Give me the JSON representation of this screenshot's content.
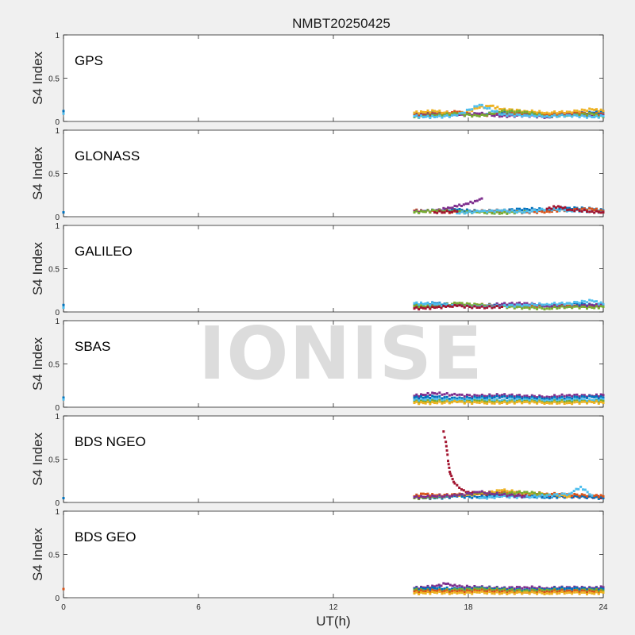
{
  "title": "NMBT20250425",
  "watermark": "IONISE",
  "xlabel": "UT(h)",
  "ylabel": "S4 Index",
  "colors": {
    "background": "#f0f0f0",
    "axes": "#262626",
    "series": [
      "#0072BD",
      "#D95319",
      "#EDB120",
      "#7E2F8E",
      "#77AC30",
      "#4DBEEE",
      "#A2142F"
    ]
  },
  "chart_data": {
    "type": "scatter",
    "xlim": [
      0,
      24
    ],
    "ylim": [
      0,
      1
    ],
    "x_ticks": [
      0,
      6,
      12,
      18,
      24
    ],
    "y_ticks": [
      0,
      0.5,
      1
    ],
    "y_tick_labels": [
      "0",
      "0.5",
      "1"
    ],
    "grid": false,
    "panels": [
      {
        "label": "GPS",
        "series": [
          {
            "color": "#0072BD",
            "x": [
              0,
              15.6,
              16.5,
              17.5,
              18.5,
              19.5,
              20.5,
              21.5,
              22.5,
              23.5,
              24
            ],
            "y": [
              0.12,
              0.08,
              0.1,
              0.09,
              0.08,
              0.1,
              0.09,
              0.08,
              0.09,
              0.1,
              0.11
            ]
          },
          {
            "color": "#D95319",
            "x": [
              15.6,
              16.5,
              17.5,
              18.5,
              19.5,
              20.5,
              21.5,
              22.5,
              23.5,
              24
            ],
            "y": [
              0.07,
              0.09,
              0.11,
              0.07,
              0.08,
              0.1,
              0.08,
              0.1,
              0.09,
              0.08
            ]
          },
          {
            "color": "#EDB120",
            "x": [
              15.6,
              16.5,
              17.5,
              18.5,
              19.0,
              19.5,
              20.5,
              21.5,
              22.5,
              23.5,
              24
            ],
            "y": [
              0.1,
              0.12,
              0.08,
              0.16,
              0.18,
              0.14,
              0.12,
              0.1,
              0.11,
              0.14,
              0.12
            ]
          },
          {
            "color": "#7E2F8E",
            "x": [
              15.6,
              16.5,
              17.5,
              18.5,
              19.5,
              20.5,
              21.5,
              22.5,
              23.5,
              24
            ],
            "y": [
              0.06,
              0.08,
              0.07,
              0.09,
              0.06,
              0.07,
              0.05,
              0.08,
              0.06,
              0.07
            ]
          },
          {
            "color": "#77AC30",
            "x": [
              15.6,
              16.5,
              17.5,
              18.5,
              19.5,
              20.5,
              21.5,
              22.5,
              23.5,
              24
            ],
            "y": [
              0.05,
              0.07,
              0.09,
              0.06,
              0.12,
              0.11,
              0.06,
              0.07,
              0.09,
              0.05
            ]
          },
          {
            "color": "#4DBEEE",
            "x": [
              0,
              15.6,
              16.5,
              17.5,
              18.5,
              19.5,
              20.5,
              21.5,
              22.5,
              23.5,
              24
            ],
            "y": [
              0.09,
              0.06,
              0.05,
              0.07,
              0.19,
              0.08,
              0.07,
              0.06,
              0.07,
              0.05,
              0.06
            ]
          }
        ]
      },
      {
        "label": "GLONASS",
        "series": [
          {
            "color": "#0072BD",
            "x": [
              0,
              15.6,
              16.5,
              17.5,
              18.5,
              19.5,
              20.5,
              21.5,
              22.5,
              23.5,
              24
            ],
            "y": [
              0.05,
              0.06,
              0.07,
              0.08,
              0.06,
              0.07,
              0.09,
              0.08,
              0.1,
              0.09,
              0.07
            ]
          },
          {
            "color": "#D95319",
            "x": [
              15.6,
              16.5,
              17.5,
              18.5,
              19.5,
              20.5,
              21.5,
              22.5,
              23.5,
              24
            ],
            "y": [
              0.07,
              0.06,
              0.05,
              0.06,
              0.07,
              0.05,
              0.06,
              0.08,
              0.09,
              0.06
            ]
          },
          {
            "color": "#7E2F8E",
            "x": [
              15.6,
              16.5,
              17.0,
              17.5,
              18.0,
              18.3,
              18.6
            ],
            "y": [
              0.06,
              0.07,
              0.09,
              0.12,
              0.15,
              0.18,
              0.21
            ]
          },
          {
            "color": "#77AC30",
            "x": [
              15.6,
              16.5,
              17.5,
              18.5,
              19.5,
              20.5
            ],
            "y": [
              0.05,
              0.07,
              0.06,
              0.05,
              0.04,
              0.06
            ]
          },
          {
            "color": "#4DBEEE",
            "x": [
              17.5,
              18.5,
              19.5,
              20.5,
              21.5,
              22.5,
              23.5,
              24
            ],
            "y": [
              0.04,
              0.06,
              0.07,
              0.05,
              0.09,
              0.07,
              0.06,
              0.05
            ]
          },
          {
            "color": "#A2142F",
            "x": [
              16.5,
              17.5,
              21.5,
              22.0,
              22.5,
              23.5,
              24
            ],
            "y": [
              0.05,
              0.06,
              0.09,
              0.12,
              0.08,
              0.06,
              0.05
            ]
          }
        ]
      },
      {
        "label": "GALILEO",
        "series": [
          {
            "color": "#0072BD",
            "x": [
              0,
              15.6,
              16.5,
              17.5,
              18.5,
              19.5,
              20.5,
              21.5,
              22.5,
              23.5,
              24
            ],
            "y": [
              0.08,
              0.09,
              0.1,
              0.08,
              0.07,
              0.09,
              0.08,
              0.07,
              0.1,
              0.08,
              0.07
            ]
          },
          {
            "color": "#D95319",
            "x": [
              15.6,
              16.5,
              17.5,
              18.5,
              19.5,
              20.5,
              21.5,
              22.5,
              23.5,
              24
            ],
            "y": [
              0.06,
              0.07,
              0.09,
              0.08,
              0.07,
              0.06,
              0.08,
              0.07,
              0.06,
              0.07
            ]
          },
          {
            "color": "#7E2F8E",
            "x": [
              15.6,
              16.5,
              17.5,
              18.5,
              19.5,
              20.5,
              21.5,
              22.5,
              23.5,
              24
            ],
            "y": [
              0.05,
              0.07,
              0.08,
              0.06,
              0.09,
              0.1,
              0.07,
              0.06,
              0.08,
              0.07
            ]
          },
          {
            "color": "#77AC30",
            "x": [
              15.6,
              16.5,
              17.5,
              18.5,
              19.5,
              20.5,
              21.5,
              22.5,
              23.5,
              24
            ],
            "y": [
              0.07,
              0.06,
              0.1,
              0.08,
              0.06,
              0.05,
              0.04,
              0.06,
              0.05,
              0.06
            ]
          },
          {
            "color": "#4DBEEE",
            "x": [
              0,
              15.6,
              16.5,
              17.5,
              18.5,
              19.5,
              20.5,
              21.5,
              22.5,
              23.5,
              24
            ],
            "y": [
              0.05,
              0.1,
              0.09,
              0.07,
              0.06,
              0.07,
              0.08,
              0.09,
              0.1,
              0.13,
              0.09
            ]
          },
          {
            "color": "#A2142F",
            "x": [
              15.6,
              16.5,
              17.0,
              17.5,
              18.5,
              19.5
            ],
            "y": [
              0.04,
              0.05,
              0.06,
              0.07,
              0.05,
              0.06
            ]
          }
        ]
      },
      {
        "label": "SBAS",
        "series": [
          {
            "color": "#7E2F8E",
            "x": [
              15.6,
              16.5,
              17.5,
              18.5,
              19.5,
              20.5,
              21.5,
              22.5,
              23.5,
              24
            ],
            "y": [
              0.13,
              0.16,
              0.14,
              0.13,
              0.14,
              0.13,
              0.12,
              0.14,
              0.13,
              0.14
            ]
          },
          {
            "color": "#0072BD",
            "x": [
              0,
              15.6,
              16.5,
              17.5,
              18.5,
              19.5,
              20.5,
              21.5,
              22.5,
              23.5,
              24
            ],
            "y": [
              0.11,
              0.11,
              0.12,
              0.1,
              0.11,
              0.12,
              0.11,
              0.1,
              0.11,
              0.12,
              0.11
            ]
          },
          {
            "color": "#4DBEEE",
            "x": [
              0,
              15.6,
              16.5,
              17.5,
              18.5,
              19.5,
              20.5,
              21.5,
              22.5,
              23.5,
              24
            ],
            "y": [
              0.09,
              0.08,
              0.09,
              0.08,
              0.09,
              0.08,
              0.09,
              0.08,
              0.09,
              0.08,
              0.09
            ]
          },
          {
            "color": "#77AC30",
            "x": [
              15.6,
              16.5,
              17.5,
              18.5,
              19.5,
              20.5,
              21.5,
              22.5,
              23.5,
              24
            ],
            "y": [
              0.06,
              0.07,
              0.06,
              0.07,
              0.06,
              0.07,
              0.06,
              0.07,
              0.06,
              0.07
            ]
          },
          {
            "color": "#EDB120",
            "x": [
              15.6,
              16.5,
              17.5,
              18.5,
              19.5,
              20.5,
              21.5,
              22.5,
              23.5,
              24
            ],
            "y": [
              0.05,
              0.05,
              0.06,
              0.05,
              0.05,
              0.06,
              0.05,
              0.05,
              0.06,
              0.05
            ]
          }
        ]
      },
      {
        "label": "BDS NGEO",
        "series": [
          {
            "color": "#A2142F",
            "x": [
              16.9,
              17.0,
              17.05,
              17.1,
              17.15,
              17.2,
              17.3,
              17.4,
              17.6,
              17.8,
              18.0,
              18.5,
              19.0,
              20.0,
              21.0,
              22.0,
              23.0,
              24
            ],
            "y": [
              0.82,
              0.7,
              0.6,
              0.48,
              0.4,
              0.33,
              0.27,
              0.22,
              0.17,
              0.14,
              0.12,
              0.1,
              0.09,
              0.08,
              0.08,
              0.07,
              0.07,
              0.06
            ]
          },
          {
            "color": "#0072BD",
            "x": [
              0,
              15.6,
              16.5,
              17.5,
              18.5,
              19.5,
              20.5,
              21.5,
              22.5,
              23.5,
              24
            ],
            "y": [
              0.05,
              0.06,
              0.05,
              0.07,
              0.06,
              0.08,
              0.07,
              0.06,
              0.07,
              0.06,
              0.05
            ]
          },
          {
            "color": "#D95319",
            "x": [
              15.6,
              16.0,
              16.5,
              17.5,
              18.5,
              19.5,
              20.5,
              21.5,
              22.5,
              23.5,
              24
            ],
            "y": [
              0.07,
              0.1,
              0.08,
              0.09,
              0.1,
              0.12,
              0.11,
              0.1,
              0.09,
              0.08,
              0.07
            ]
          },
          {
            "color": "#EDB120",
            "x": [
              17.5,
              18.5,
              19.5,
              20.5,
              21.5,
              22.5
            ],
            "y": [
              0.08,
              0.1,
              0.14,
              0.11,
              0.09,
              0.07
            ]
          },
          {
            "color": "#77AC30",
            "x": [
              15.6,
              16.5,
              17.5,
              18.5,
              19.5,
              20.5,
              21.5
            ],
            "y": [
              0.05,
              0.06,
              0.08,
              0.11,
              0.1,
              0.12,
              0.09
            ]
          },
          {
            "color": "#4DBEEE",
            "x": [
              18.5,
              19.5,
              20.5,
              21.5,
              22.5,
              23.0,
              23.5
            ],
            "y": [
              0.05,
              0.07,
              0.06,
              0.08,
              0.1,
              0.18,
              0.08
            ]
          },
          {
            "color": "#7E2F8E",
            "x": [
              15.6,
              16.5,
              17.5,
              18.5,
              19.5,
              20.5
            ],
            "y": [
              0.06,
              0.07,
              0.08,
              0.12,
              0.09,
              0.07
            ]
          }
        ]
      },
      {
        "label": "BDS GEO",
        "series": [
          {
            "color": "#7E2F8E",
            "x": [
              15.6,
              16.5,
              17.0,
              17.5,
              18.5,
              19.5,
              20.5,
              21.5,
              22.5,
              23.5,
              24
            ],
            "y": [
              0.11,
              0.13,
              0.16,
              0.13,
              0.12,
              0.11,
              0.12,
              0.11,
              0.12,
              0.11,
              0.12
            ]
          },
          {
            "color": "#0072BD",
            "x": [
              15.6,
              16.5,
              17.5,
              18.5,
              19.5,
              20.5,
              21.5,
              22.5,
              23.5,
              24
            ],
            "y": [
              0.1,
              0.11,
              0.1,
              0.11,
              0.1,
              0.09,
              0.1,
              0.11,
              0.1,
              0.1
            ]
          },
          {
            "color": "#77AC30",
            "x": [
              15.6,
              16.5,
              17.5,
              18.5,
              19.5,
              20.5,
              21.5,
              22.5,
              23.5,
              24
            ],
            "y": [
              0.09,
              0.08,
              0.09,
              0.1,
              0.09,
              0.08,
              0.09,
              0.08,
              0.09,
              0.08
            ]
          },
          {
            "color": "#D95319",
            "x": [
              0,
              15.6,
              16.5,
              17.5,
              18.5,
              19.5,
              20.5,
              21.5,
              22.5,
              23.5,
              24
            ],
            "y": [
              0.1,
              0.07,
              0.08,
              0.07,
              0.08,
              0.07,
              0.06,
              0.07,
              0.08,
              0.07,
              0.06
            ]
          },
          {
            "color": "#EDB120",
            "x": [
              15.6,
              16.5,
              17.5,
              18.5,
              19.5,
              20.5,
              21.5,
              22.5,
              23.5,
              24
            ],
            "y": [
              0.05,
              0.06,
              0.05,
              0.06,
              0.05,
              0.06,
              0.05,
              0.06,
              0.05,
              0.06
            ]
          }
        ]
      }
    ]
  }
}
